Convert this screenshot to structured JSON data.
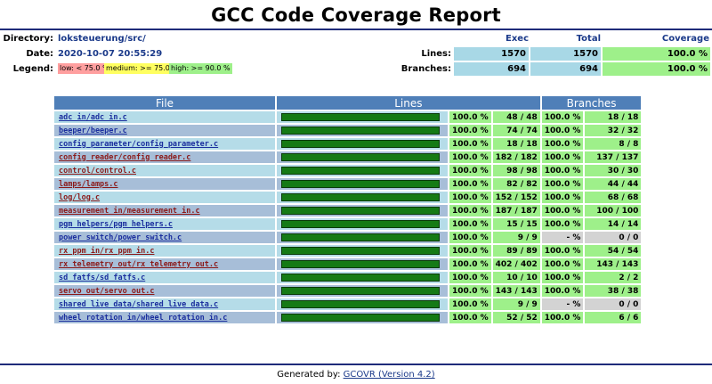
{
  "title": "GCC Code Coverage Report",
  "header": {
    "directory_label": "Directory:",
    "directory_value": "loksteuerung/src/",
    "date_label": "Date:",
    "date_value": "2020-10-07 20:55:29",
    "legend_label": "Legend:",
    "legend_low": "low: < 75.0 %",
    "legend_medium": "medium: >= 75.0 %",
    "legend_high": "high: >= 90.0 %",
    "col_exec": "Exec",
    "col_total": "Total",
    "col_coverage": "Coverage",
    "lines_label": "Lines:",
    "lines_exec": "1570",
    "lines_total": "1570",
    "lines_coverage": "100.0 %",
    "branches_label": "Branches:",
    "branches_exec": "694",
    "branches_total": "694",
    "branches_coverage": "100.0 %"
  },
  "table": {
    "col_file": "File",
    "col_lines": "Lines",
    "col_branches": "Branches",
    "rows": [
      {
        "file": "adc_in/adc_in.c",
        "color": "blue",
        "line_pct": "100.0 %",
        "line_count": "48 / 48",
        "branch_pct": "100.0 %",
        "branch_count": "18 / 18",
        "line_fill": 1.0
      },
      {
        "file": "beeper/beeper.c",
        "color": "blue",
        "line_pct": "100.0 %",
        "line_count": "74 / 74",
        "branch_pct": "100.0 %",
        "branch_count": "32 / 32",
        "line_fill": 1.0
      },
      {
        "file": "config_parameter/config_parameter.c",
        "color": "blue",
        "line_pct": "100.0 %",
        "line_count": "18 / 18",
        "branch_pct": "100.0 %",
        "branch_count": "8 / 8",
        "line_fill": 1.0
      },
      {
        "file": "config_reader/config_reader.c",
        "color": "red",
        "line_pct": "100.0 %",
        "line_count": "182 / 182",
        "branch_pct": "100.0 %",
        "branch_count": "137 / 137",
        "line_fill": 1.0
      },
      {
        "file": "control/control.c",
        "color": "red",
        "line_pct": "100.0 %",
        "line_count": "98 / 98",
        "branch_pct": "100.0 %",
        "branch_count": "30 / 30",
        "line_fill": 1.0
      },
      {
        "file": "lamps/lamps.c",
        "color": "red",
        "line_pct": "100.0 %",
        "line_count": "82 / 82",
        "branch_pct": "100.0 %",
        "branch_count": "44 / 44",
        "line_fill": 1.0
      },
      {
        "file": "log/log.c",
        "color": "red",
        "line_pct": "100.0 %",
        "line_count": "152 / 152",
        "branch_pct": "100.0 %",
        "branch_count": "68 / 68",
        "line_fill": 1.0
      },
      {
        "file": "measurement_in/measurement_in.c",
        "color": "red",
        "line_pct": "100.0 %",
        "line_count": "187 / 187",
        "branch_pct": "100.0 %",
        "branch_count": "100 / 100",
        "line_fill": 1.0
      },
      {
        "file": "pgm_helpers/pgm_helpers.c",
        "color": "blue",
        "line_pct": "100.0 %",
        "line_count": "15 / 15",
        "branch_pct": "100.0 %",
        "branch_count": "14 / 14",
        "line_fill": 1.0
      },
      {
        "file": "power_switch/power_switch.c",
        "color": "blue",
        "line_pct": "100.0 %",
        "line_count": "9 / 9",
        "branch_pct": "- %",
        "branch_count": "0 / 0",
        "line_fill": 1.0,
        "branch_na": true
      },
      {
        "file": "rx_ppm_in/rx_ppm_in.c",
        "color": "red",
        "line_pct": "100.0 %",
        "line_count": "89 / 89",
        "branch_pct": "100.0 %",
        "branch_count": "54 / 54",
        "line_fill": 1.0
      },
      {
        "file": "rx_telemetry_out/rx_telemetry_out.c",
        "color": "red",
        "line_pct": "100.0 %",
        "line_count": "402 / 402",
        "branch_pct": "100.0 %",
        "branch_count": "143 / 143",
        "line_fill": 1.0
      },
      {
        "file": "sd_fatfs/sd_fatfs.c",
        "color": "blue",
        "line_pct": "100.0 %",
        "line_count": "10 / 10",
        "branch_pct": "100.0 %",
        "branch_count": "2 / 2",
        "line_fill": 1.0
      },
      {
        "file": "servo_out/servo_out.c",
        "color": "red",
        "line_pct": "100.0 %",
        "line_count": "143 / 143",
        "branch_pct": "100.0 %",
        "branch_count": "38 / 38",
        "line_fill": 1.0
      },
      {
        "file": "shared_live_data/shared_live_data.c",
        "color": "blue",
        "line_pct": "100.0 %",
        "line_count": "9 / 9",
        "branch_pct": "- %",
        "branch_count": "0 / 0",
        "line_fill": 1.0,
        "branch_na": true
      },
      {
        "file": "wheel_rotation_in/wheel_rotation_in.c",
        "color": "blue",
        "line_pct": "100.0 %",
        "line_count": "52 / 52",
        "branch_pct": "100.0 %",
        "branch_count": "6 / 6",
        "line_fill": 1.0
      }
    ]
  },
  "footer": {
    "prefix": "Generated by: ",
    "link": "GCOVR (Version 4.2)"
  }
}
